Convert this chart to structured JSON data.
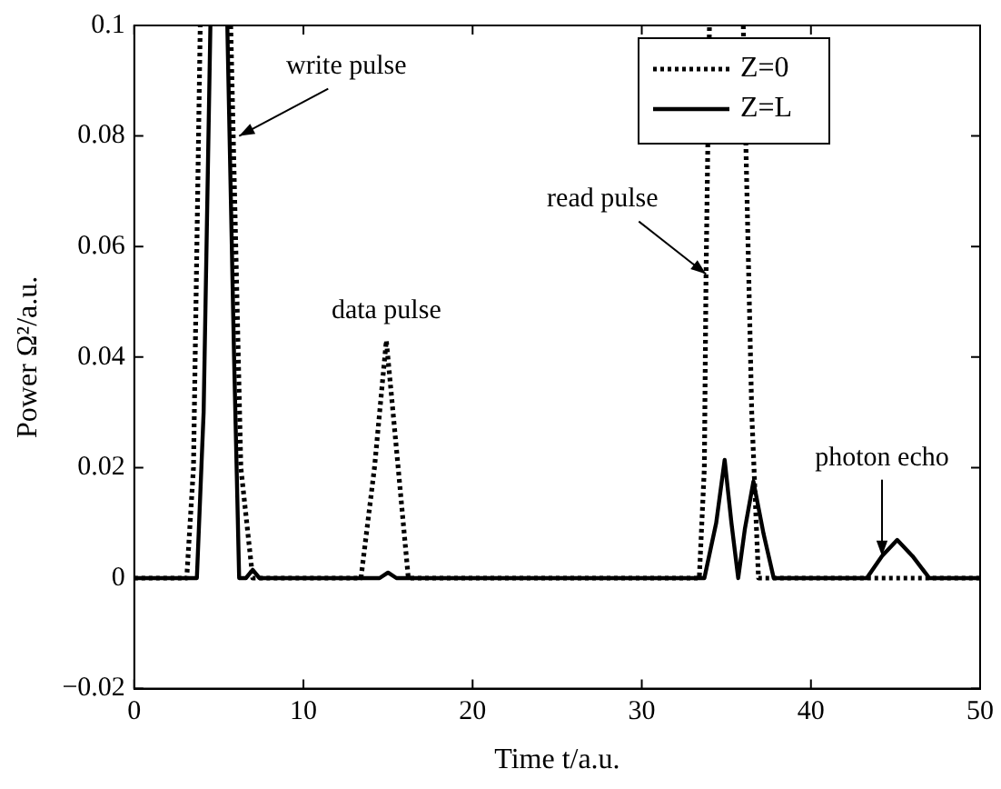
{
  "chart_data": {
    "type": "line",
    "xlabel": "Time t/a.u.",
    "ylabel": "Power Ω²/a.u.",
    "xlim": [
      0,
      50
    ],
    "xticks": [
      0,
      10,
      20,
      30,
      40,
      50
    ],
    "ylim": [
      -0.02,
      0.1
    ],
    "yticks": [
      {
        "value": -0.02,
        "label": "−0.02"
      },
      0,
      0.02,
      0.04,
      0.06,
      0.08,
      0.1
    ],
    "grid": false,
    "legend": "top right",
    "marker": "none",
    "series": [
      {
        "name": "Z=0",
        "color": "#000000",
        "line_style": "dotted",
        "x": [
          0,
          3.1,
          3.5,
          3.9,
          4.8,
          5.7,
          6.3,
          7.0,
          13.4,
          14.2,
          14.9,
          15.6,
          16.2,
          33.4,
          33.7,
          33.8,
          34.0,
          35.0,
          36.0,
          36.5,
          36.9,
          50
        ],
        "values": [
          0,
          0,
          0.02,
          0.1,
          null,
          0.1,
          0.02,
          0,
          0,
          0.02,
          0.043,
          0.02,
          0,
          0,
          0.02,
          0.055,
          0.1,
          null,
          0.1,
          0.03,
          0,
          0
        ]
      },
      {
        "name": "Z=L",
        "color": "#000000",
        "line_style": "solid",
        "x": [
          0,
          3.7,
          4.1,
          4.5,
          5.0,
          5.5,
          5.9,
          6.2,
          6.6,
          7.0,
          7.4,
          14.5,
          15.0,
          15.5,
          33.7,
          34.4,
          34.9,
          35.3,
          35.7,
          36.1,
          36.6,
          37.2,
          37.8,
          43.3,
          44.2,
          45.1,
          46.0,
          47.0,
          50
        ],
        "values": [
          0,
          0,
          0.03,
          0.1,
          null,
          0.1,
          0.04,
          0,
          0,
          0.0015,
          0,
          0,
          0.001,
          0,
          0,
          0.01,
          0.0214,
          0.01,
          0,
          0.009,
          0.0175,
          0.008,
          0,
          0,
          0.004,
          0.0069,
          0.004,
          0,
          0
        ]
      }
    ],
    "annotations": [
      {
        "text": "write pulse",
        "x": 6.2,
        "y": 0.08
      },
      {
        "text": "data pulse",
        "x": 14.9,
        "y": 0.043
      },
      {
        "text": "read pulse",
        "x": 33.8,
        "y": 0.055
      },
      {
        "text": "photon echo",
        "x": 44.2,
        "y": 0.004
      }
    ]
  }
}
